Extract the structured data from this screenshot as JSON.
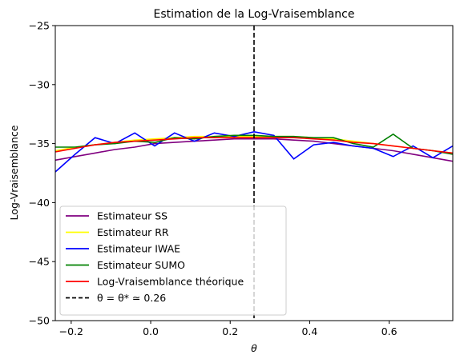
{
  "chart_data": {
    "type": "line",
    "title": "Estimation de la Log-Vraisemblance",
    "xlabel": "θ",
    "ylabel": "Log-Vraisemblance",
    "xlim": [
      -0.24,
      0.76
    ],
    "ylim": [
      -50,
      -25
    ],
    "grid": false,
    "legend_placement": "lower-left",
    "x_ticks": [
      -0.2,
      0.0,
      0.2,
      0.4,
      0.6
    ],
    "x_tick_labels": [
      "−0.2",
      "0.0",
      "0.2",
      "0.4",
      "0.6"
    ],
    "y_ticks": [
      -50,
      -45,
      -40,
      -35,
      -30,
      -25
    ],
    "y_tick_labels": [
      "−50",
      "−45",
      "−40",
      "−35",
      "−30",
      "−25"
    ],
    "x": [
      -0.24,
      -0.19,
      -0.14,
      -0.09,
      -0.04,
      0.01,
      0.06,
      0.11,
      0.16,
      0.21,
      0.26,
      0.31,
      0.36,
      0.41,
      0.46,
      0.51,
      0.56,
      0.61,
      0.66,
      0.71,
      0.76
    ],
    "series": [
      {
        "name": "Estimateur SS",
        "color": "#800080",
        "values": [
          -36.4,
          -36.1,
          -35.8,
          -35.5,
          -35.3,
          -35.0,
          -34.9,
          -34.8,
          -34.7,
          -34.6,
          -34.6,
          -34.6,
          -34.7,
          -34.8,
          -35.0,
          -35.2,
          -35.4,
          -35.6,
          -35.9,
          -36.2,
          -36.5
        ]
      },
      {
        "name": "Estimateur RR",
        "color": "#ffff00",
        "values": [
          -35.6,
          -35.3,
          -35.1,
          -34.9,
          -34.7,
          -34.6,
          -34.5,
          -34.4,
          -34.4,
          -34.4,
          -34.4,
          -34.4,
          -34.4,
          -34.5,
          -34.6,
          -34.8,
          -35.0,
          -35.2,
          -35.4,
          -35.6,
          -35.8
        ]
      },
      {
        "name": "Estimateur IWAE",
        "color": "#0000ff",
        "values": [
          -37.4,
          -35.9,
          -34.5,
          -35.0,
          -34.1,
          -35.2,
          -34.1,
          -34.8,
          -34.1,
          -34.4,
          -34.0,
          -34.3,
          -36.3,
          -35.1,
          -34.9,
          -35.2,
          -35.4,
          -36.1,
          -35.2,
          -36.2,
          -35.2
        ]
      },
      {
        "name": "Estimateur SUMO",
        "color": "#008000",
        "values": [
          -35.3,
          -35.3,
          -35.1,
          -35.0,
          -34.8,
          -34.9,
          -34.5,
          -34.6,
          -34.4,
          -34.3,
          -34.3,
          -34.4,
          -34.4,
          -34.5,
          -34.5,
          -35.0,
          -35.3,
          -34.2,
          -35.4,
          -35.6,
          -35.9
        ]
      },
      {
        "name": "Log-Vraisemblance théorique",
        "color": "#ff0000",
        "values": [
          -35.7,
          -35.4,
          -35.1,
          -34.9,
          -34.8,
          -34.7,
          -34.6,
          -34.5,
          -34.5,
          -34.5,
          -34.5,
          -34.5,
          -34.5,
          -34.6,
          -34.7,
          -34.9,
          -35.0,
          -35.2,
          -35.4,
          -35.6,
          -35.8
        ]
      }
    ],
    "vline": {
      "x": 0.26,
      "label": "θ = θ* ≃ 0.26",
      "color": "#000000",
      "style": "dashed"
    }
  }
}
